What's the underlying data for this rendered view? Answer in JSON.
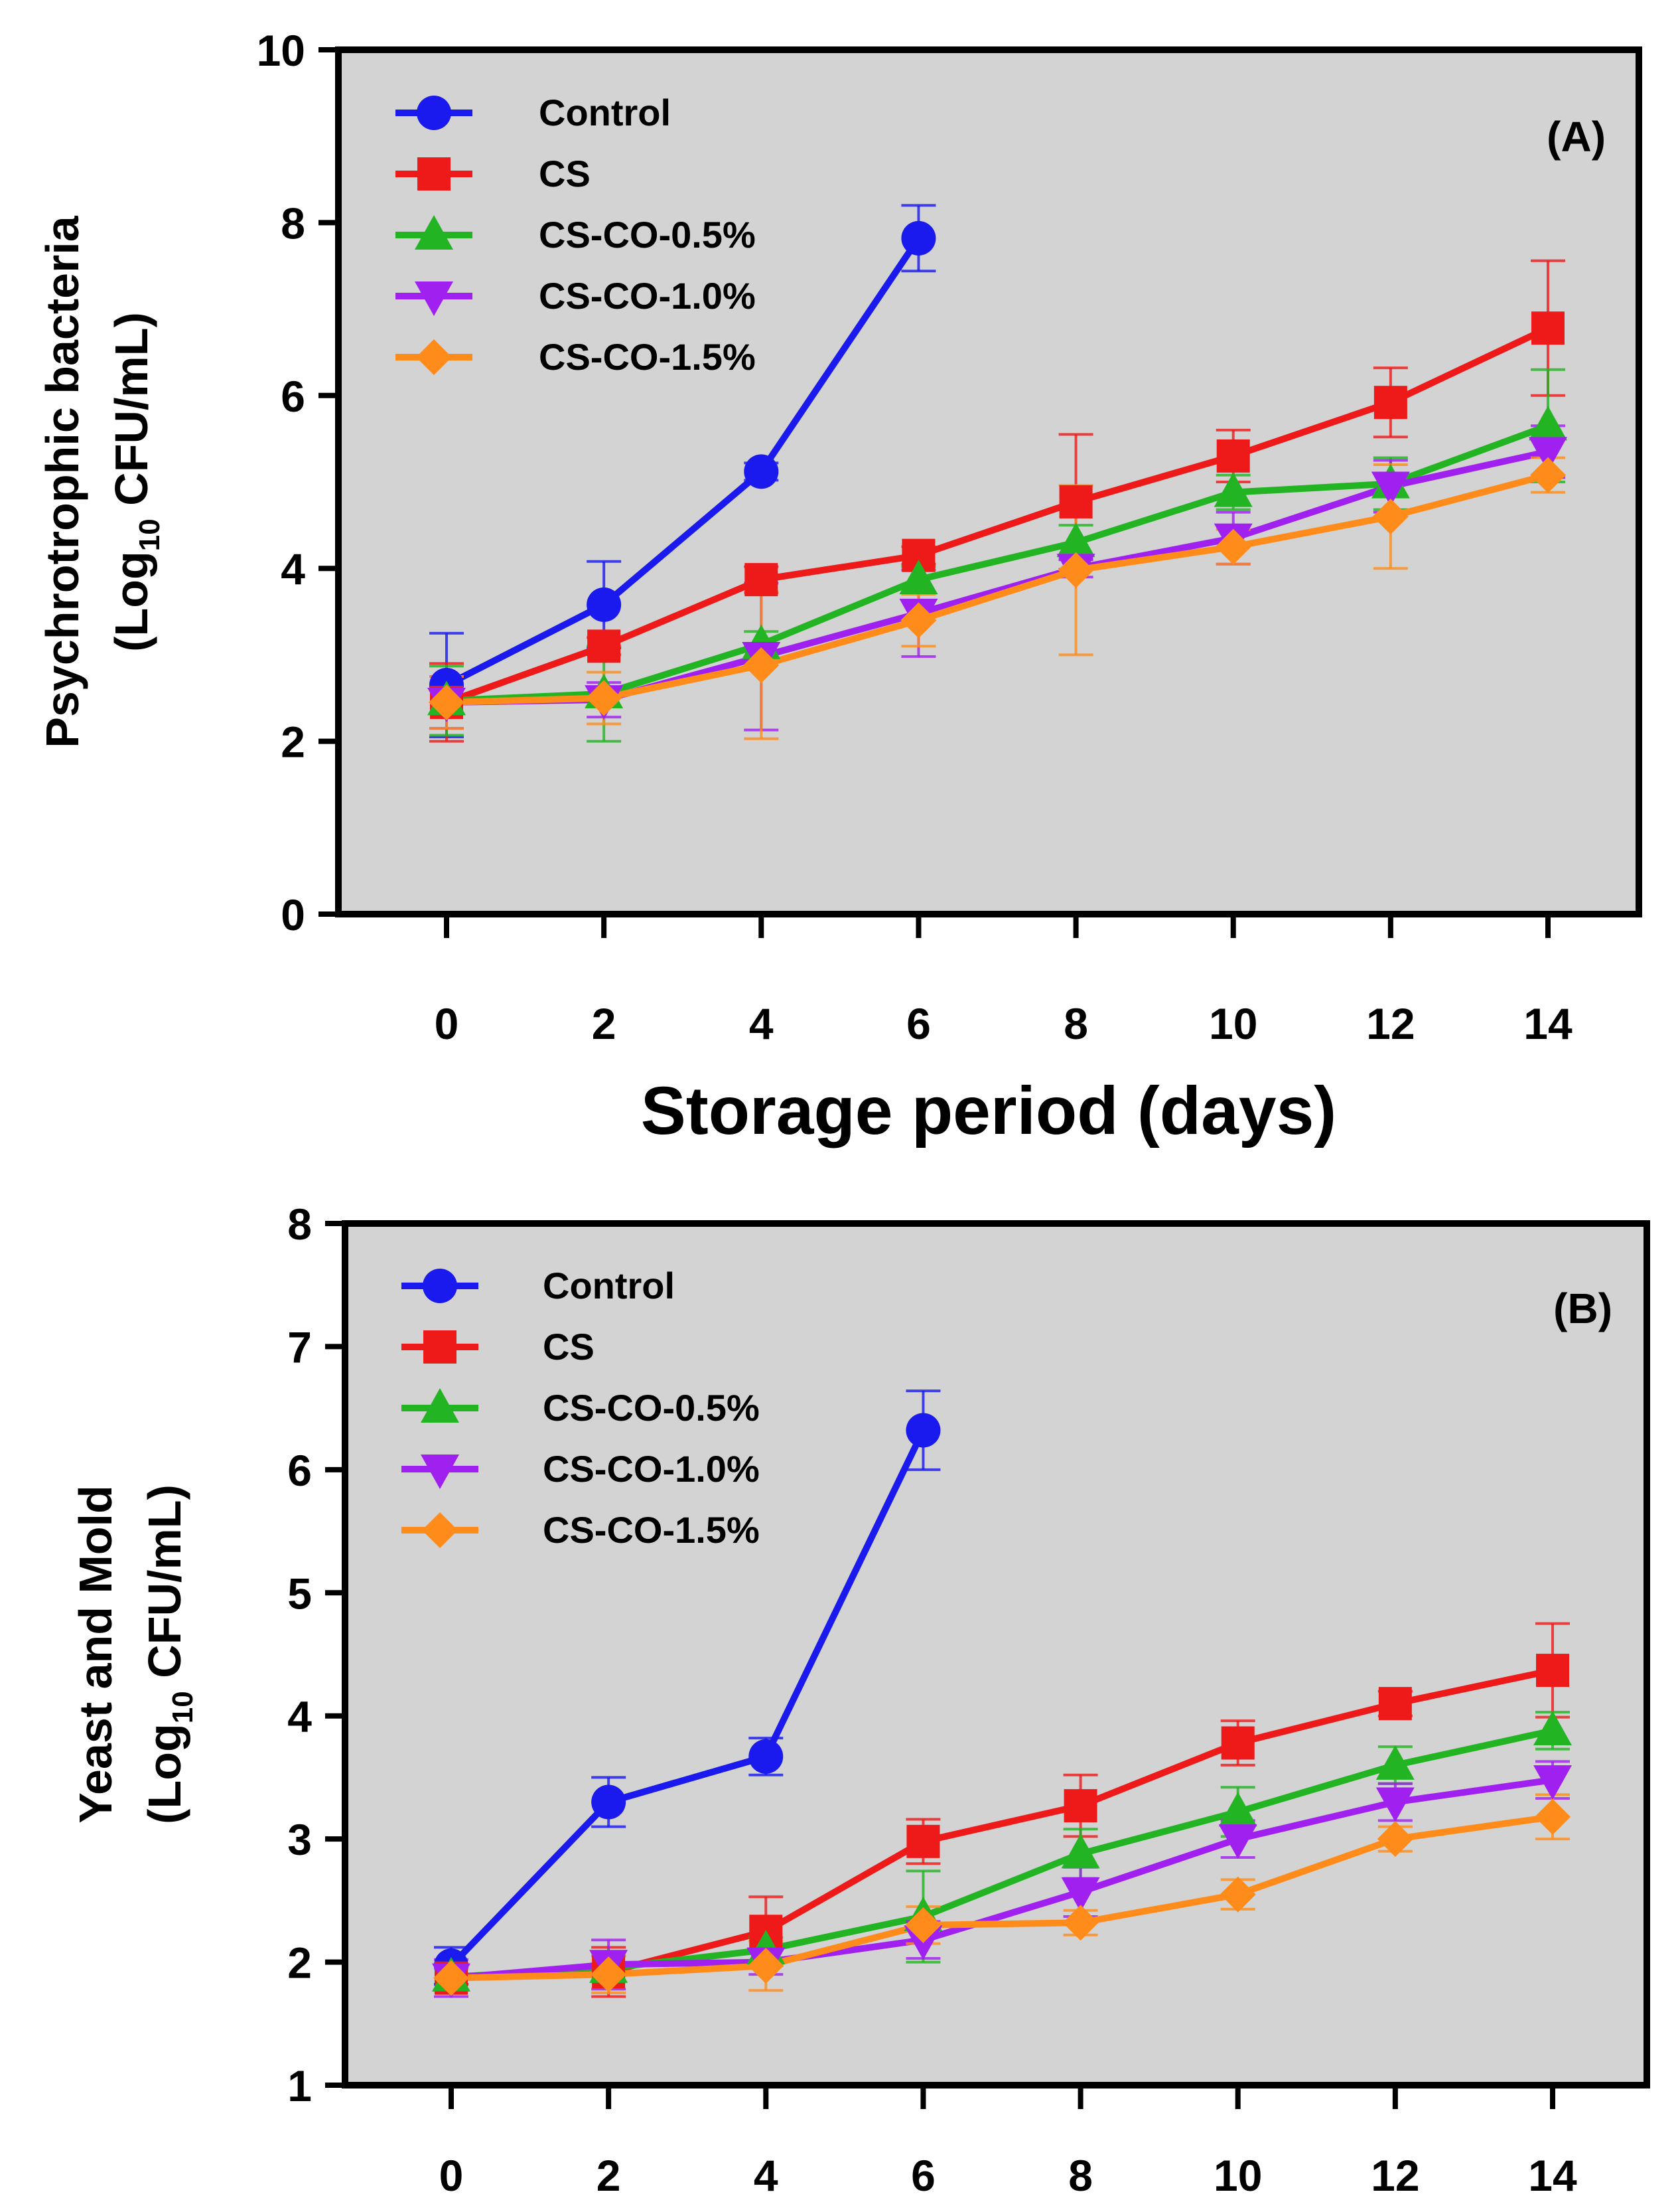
{
  "chart_data": [
    {
      "type": "line",
      "panel_label": "(A)",
      "ylabel_line1": "Psychrotrophic bacteria",
      "ylabel_line2_pre": "(Log",
      "ylabel_line2_sub": "10",
      "ylabel_line2_post": " CFU/mL)",
      "xlabel": "Storage period (days)",
      "x": [
        0,
        2,
        4,
        6,
        8,
        10,
        12,
        14
      ],
      "x_ticks": [
        "0",
        "2",
        "4",
        "6",
        "8",
        "10",
        "12",
        "14"
      ],
      "ylim": [
        0,
        10
      ],
      "y_ticks": [
        "0",
        "2",
        "4",
        "6",
        "8",
        "10"
      ],
      "series": [
        {
          "name": "Control",
          "color": "#1a1aee",
          "marker": "circle",
          "values": [
            2.65,
            3.58,
            5.12,
            7.82,
            null,
            null,
            null,
            null
          ],
          "errors": [
            0.6,
            0.5,
            0.1,
            0.38,
            null,
            null,
            null,
            null
          ]
        },
        {
          "name": "CS",
          "color": "#ee1a1a",
          "marker": "square",
          "values": [
            2.45,
            3.1,
            3.87,
            4.15,
            4.77,
            5.3,
            5.92,
            6.78
          ],
          "errors": [
            0.45,
            0.1,
            0.15,
            0.1,
            0.78,
            0.3,
            0.4,
            0.78
          ]
        },
        {
          "name": "CS-CO-0.5%",
          "color": "#22b422",
          "marker": "triangle-up",
          "values": [
            2.47,
            2.55,
            3.12,
            3.87,
            4.3,
            4.88,
            4.98,
            5.65
          ],
          "errors": [
            0.4,
            0.55,
            0.15,
            0.15,
            0.2,
            0.2,
            0.3,
            0.65
          ]
        },
        {
          "name": "CS-CO-1.0%",
          "color": "#a020f0",
          "marker": "triangle-down",
          "values": [
            2.45,
            2.48,
            2.98,
            3.48,
            4.0,
            4.35,
            4.95,
            5.35
          ],
          "errors": [
            0.3,
            0.2,
            0.85,
            0.5,
            0.1,
            0.3,
            0.3,
            0.3
          ]
        },
        {
          "name": "CS-CO-1.5%",
          "color": "#ff8c1a",
          "marker": "diamond",
          "values": [
            2.45,
            2.5,
            2.88,
            3.4,
            3.98,
            4.25,
            4.6,
            5.08
          ],
          "errors": [
            0.3,
            0.3,
            0.85,
            0.3,
            0.98,
            0.2,
            0.6,
            0.2
          ]
        }
      ]
    },
    {
      "type": "line",
      "panel_label": "(B)",
      "ylabel_line1": "Yeast and Mold",
      "ylabel_line2_pre": "(Log",
      "ylabel_line2_sub": "10",
      "ylabel_line2_post": " CFU/mL)",
      "xlabel": "",
      "x": [
        0,
        2,
        4,
        6,
        8,
        10,
        12,
        14
      ],
      "x_ticks": [
        "0",
        "2",
        "4",
        "6",
        "8",
        "10",
        "12",
        "14"
      ],
      "ylim": [
        1,
        8
      ],
      "y_ticks": [
        "1",
        "2",
        "3",
        "4",
        "5",
        "6",
        "7",
        "8"
      ],
      "series": [
        {
          "name": "Control",
          "color": "#1a1aee",
          "marker": "circle",
          "values": [
            1.97,
            3.3,
            3.67,
            6.32,
            null,
            null,
            null,
            null
          ],
          "errors": [
            0.15,
            0.2,
            0.15,
            0.32,
            null,
            null,
            null,
            null
          ]
        },
        {
          "name": "CS",
          "color": "#ee1a1a",
          "marker": "square",
          "values": [
            1.87,
            1.92,
            2.25,
            2.98,
            3.27,
            3.78,
            4.1,
            4.37
          ],
          "errors": [
            0.1,
            0.2,
            0.28,
            0.18,
            0.25,
            0.18,
            0.1,
            0.38
          ]
        },
        {
          "name": "CS-CO-0.5%",
          "color": "#22b422",
          "marker": "triangle-up",
          "values": [
            1.88,
            1.95,
            2.1,
            2.37,
            2.88,
            3.22,
            3.6,
            3.88
          ],
          "errors": [
            0.1,
            0.1,
            0.1,
            0.37,
            0.2,
            0.2,
            0.15,
            0.15
          ]
        },
        {
          "name": "CS-CO-1.0%",
          "color": "#a020f0",
          "marker": "triangle-down",
          "values": [
            1.87,
            1.98,
            2.0,
            2.18,
            2.57,
            3.0,
            3.3,
            3.48
          ],
          "errors": [
            0.15,
            0.2,
            0.1,
            0.15,
            0.2,
            0.15,
            0.15,
            0.15
          ]
        },
        {
          "name": "CS-CO-1.5%",
          "color": "#ff8c1a",
          "marker": "diamond",
          "values": [
            1.87,
            1.9,
            1.97,
            2.3,
            2.32,
            2.55,
            3.0,
            3.18
          ],
          "errors": [
            0.1,
            0.15,
            0.2,
            0.15,
            0.1,
            0.12,
            0.1,
            0.18
          ]
        }
      ]
    }
  ]
}
